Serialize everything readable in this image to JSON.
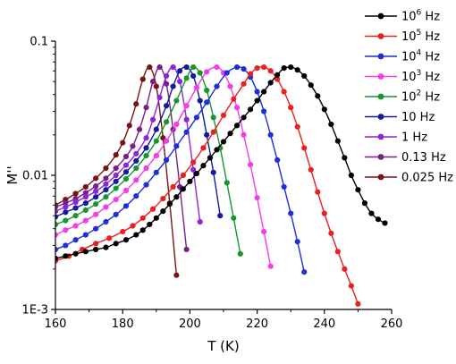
{
  "chart_data": {
    "type": "line",
    "xlabel": "T (K)",
    "ylabel": "M''",
    "xlim": [
      160,
      260
    ],
    "ylim": [
      0.001,
      0.1
    ],
    "yscale": "log",
    "x_ticks": [
      "160",
      "180",
      "200",
      "220",
      "240",
      "260"
    ],
    "y_ticks": [
      "1E-3",
      "0.01",
      "0.1"
    ],
    "legend_position": "right",
    "series": [
      {
        "name": "10^6 Hz",
        "label_base": "10",
        "label_exp": "6",
        "label_unit": " Hz",
        "color": "#000000",
        "x": [
          160,
          163,
          166,
          169,
          172,
          175,
          178,
          181,
          184,
          186,
          188,
          190,
          192,
          194,
          196,
          198,
          200,
          202,
          204,
          206,
          208,
          210,
          212,
          214,
          216,
          218,
          220,
          222,
          224,
          226,
          228,
          230,
          232,
          234,
          236,
          238,
          240,
          242,
          244,
          246,
          248,
          250,
          252,
          254,
          256,
          258
        ],
        "y": [
          0.0024,
          0.0025,
          0.0026,
          0.0027,
          0.0028,
          0.0029,
          0.0031,
          0.0033,
          0.0036,
          0.0039,
          0.0043,
          0.0048,
          0.0054,
          0.0061,
          0.0069,
          0.0079,
          0.009,
          0.0103,
          0.0118,
          0.0135,
          0.0155,
          0.0178,
          0.0205,
          0.0235,
          0.027,
          0.031,
          0.036,
          0.042,
          0.049,
          0.056,
          0.063,
          0.064,
          0.061,
          0.055,
          0.047,
          0.039,
          0.031,
          0.024,
          0.018,
          0.0135,
          0.01,
          0.0078,
          0.0062,
          0.0052,
          0.0047,
          0.0044
        ]
      },
      {
        "name": "10^5 Hz",
        "label_base": "10",
        "label_exp": "5",
        "label_unit": " Hz",
        "color": "#e8201e",
        "x": [
          160,
          164,
          168,
          172,
          176,
          180,
          183,
          186,
          189,
          192,
          195,
          198,
          201,
          204,
          207,
          210,
          213,
          216,
          218,
          220,
          222,
          224,
          226,
          228,
          230,
          232,
          234,
          236,
          238,
          240,
          242,
          244,
          246,
          248,
          250
        ],
        "y": [
          0.0023,
          0.0025,
          0.0028,
          0.0031,
          0.0034,
          0.0038,
          0.0042,
          0.0048,
          0.0056,
          0.0067,
          0.0082,
          0.01,
          0.0125,
          0.016,
          0.021,
          0.028,
          0.037,
          0.048,
          0.057,
          0.063,
          0.064,
          0.06,
          0.052,
          0.042,
          0.032,
          0.023,
          0.016,
          0.011,
          0.0075,
          0.0052,
          0.0037,
          0.0027,
          0.002,
          0.0015,
          0.0011
        ]
      },
      {
        "name": "10^4 Hz",
        "label_base": "10",
        "label_exp": "4",
        "label_unit": " Hz",
        "color": "#1d2fd6",
        "x": [
          160,
          163,
          166,
          169,
          172,
          175,
          178,
          181,
          184,
          187,
          190,
          193,
          196,
          199,
          202,
          205,
          208,
          211,
          214,
          216,
          218,
          220,
          222,
          224,
          226,
          228,
          230,
          232,
          234
        ],
        "y": [
          0.0028,
          0.003,
          0.0033,
          0.0036,
          0.004,
          0.0045,
          0.0051,
          0.0059,
          0.007,
          0.0085,
          0.0105,
          0.013,
          0.0165,
          0.021,
          0.027,
          0.035,
          0.046,
          0.058,
          0.064,
          0.062,
          0.054,
          0.042,
          0.03,
          0.02,
          0.013,
          0.0082,
          0.0052,
          0.0032,
          0.0019
        ]
      },
      {
        "name": "10^3 Hz",
        "label_base": "10",
        "label_exp": "3",
        "label_unit": " Hz",
        "color": "#f23de6",
        "x": [
          160,
          163,
          166,
          169,
          172,
          175,
          178,
          181,
          184,
          187,
          190,
          193,
          196,
          199,
          202,
          205,
          208,
          210,
          212,
          214,
          216,
          218,
          220,
          222,
          224
        ],
        "y": [
          0.0036,
          0.0039,
          0.0042,
          0.0046,
          0.0051,
          0.0058,
          0.0066,
          0.0077,
          0.0092,
          0.0113,
          0.014,
          0.018,
          0.024,
          0.033,
          0.045,
          0.059,
          0.064,
          0.058,
          0.046,
          0.032,
          0.02,
          0.012,
          0.0068,
          0.0038,
          0.0021
        ]
      },
      {
        "name": "10^2 Hz",
        "label_base": "10",
        "label_exp": "2",
        "label_unit": " Hz",
        "color": "#17962e",
        "x": [
          160,
          163,
          166,
          169,
          172,
          175,
          178,
          181,
          184,
          187,
          190,
          193,
          196,
          199,
          201,
          203,
          205,
          207,
          209,
          211,
          213,
          215
        ],
        "y": [
          0.0043,
          0.0046,
          0.005,
          0.0055,
          0.0061,
          0.0069,
          0.008,
          0.0094,
          0.0113,
          0.014,
          0.018,
          0.025,
          0.036,
          0.053,
          0.064,
          0.058,
          0.043,
          0.027,
          0.016,
          0.0088,
          0.0048,
          0.0026
        ]
      },
      {
        "name": "10 Hz",
        "label_base": "10",
        "label_exp": "",
        "label_unit": " Hz",
        "color": "#141a9c",
        "x": [
          160,
          163,
          166,
          169,
          172,
          175,
          178,
          181,
          184,
          187,
          190,
          193,
          195,
          197,
          199,
          201,
          203,
          205,
          207,
          209
        ],
        "y": [
          0.0049,
          0.0053,
          0.0057,
          0.0062,
          0.0069,
          0.0078,
          0.009,
          0.0106,
          0.0128,
          0.016,
          0.022,
          0.033,
          0.046,
          0.06,
          0.064,
          0.055,
          0.036,
          0.02,
          0.0105,
          0.005
        ]
      },
      {
        "name": "1 Hz",
        "label_base": "1",
        "label_exp": "",
        "label_unit": " Hz",
        "color": "#8f24d6",
        "x": [
          160,
          163,
          166,
          169,
          172,
          175,
          178,
          181,
          184,
          187,
          189,
          191,
          193,
          195,
          197,
          199,
          201,
          203
        ],
        "y": [
          0.0054,
          0.0058,
          0.0063,
          0.0069,
          0.0076,
          0.0086,
          0.01,
          0.0119,
          0.0145,
          0.019,
          0.026,
          0.038,
          0.055,
          0.064,
          0.05,
          0.026,
          0.011,
          0.0045
        ]
      },
      {
        "name": "0.13 Hz",
        "label_base": "0.13",
        "label_exp": "",
        "label_unit": " Hz",
        "color": "#7a1f8a",
        "x": [
          160,
          163,
          166,
          169,
          172,
          175,
          178,
          181,
          183,
          185,
          187,
          189,
          191,
          193,
          195,
          197,
          199
        ],
        "y": [
          0.0058,
          0.0062,
          0.0067,
          0.0074,
          0.0083,
          0.0095,
          0.0113,
          0.0138,
          0.0165,
          0.022,
          0.032,
          0.05,
          0.064,
          0.048,
          0.022,
          0.0082,
          0.0028
        ]
      },
      {
        "name": "0.025 Hz",
        "label_base": "0.025",
        "label_exp": "",
        "label_unit": " Hz",
        "color": "#7a1414",
        "x": [
          160,
          163,
          166,
          169,
          172,
          175,
          178,
          180,
          182,
          184,
          186,
          188,
          190,
          192,
          194,
          196
        ],
        "y": [
          0.006,
          0.0066,
          0.0073,
          0.0082,
          0.0095,
          0.0113,
          0.0142,
          0.0175,
          0.0235,
          0.034,
          0.052,
          0.064,
          0.046,
          0.019,
          0.0062,
          0.0018
        ]
      }
    ]
  }
}
